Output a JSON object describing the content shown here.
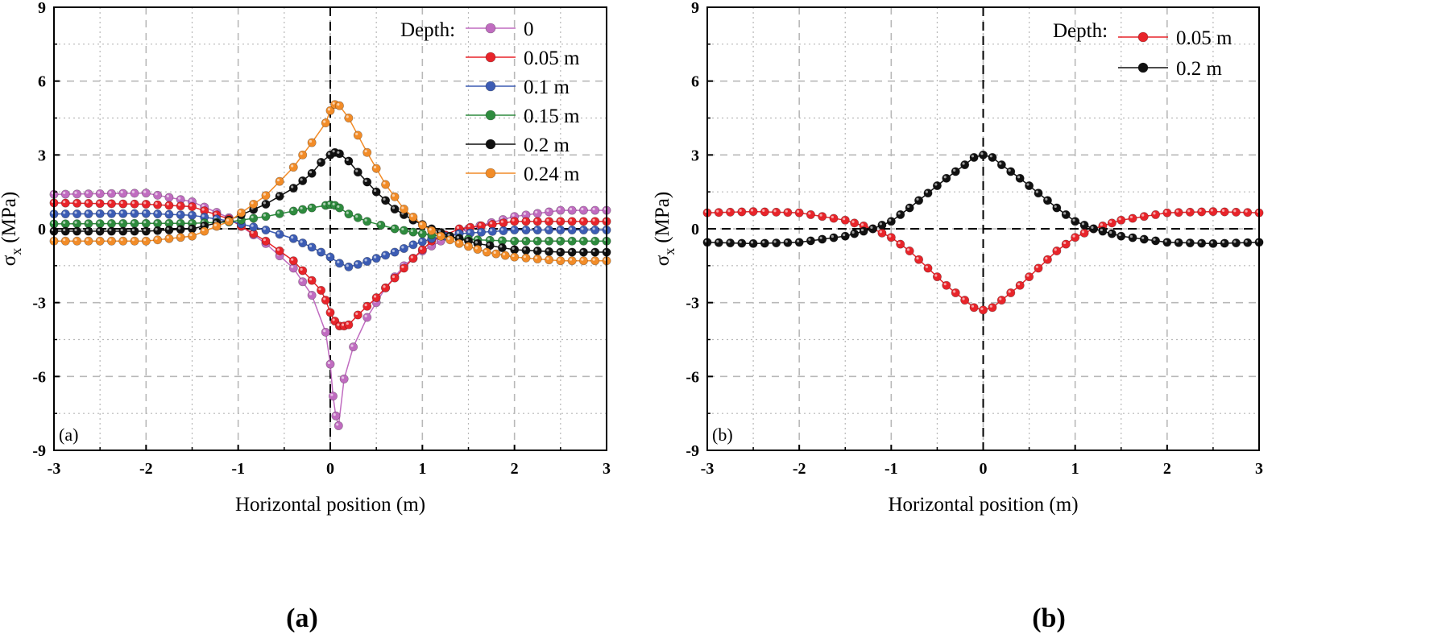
{
  "figure": {
    "captions": [
      "(a)",
      "(b)"
    ]
  },
  "chart_data": [
    {
      "type": "line",
      "panel_label": "(a)",
      "xlabel": "Horizontal position (m)",
      "ylabel_main": "σ",
      "ylabel_sub": "x",
      "ylabel_unit": "(MPa)",
      "xlim": [
        -3,
        3
      ],
      "ylim": [
        -9,
        9
      ],
      "xticks": [
        -3,
        -2,
        -1,
        0,
        1,
        2,
        3
      ],
      "yticks": [
        -9,
        -6,
        -3,
        0,
        3,
        6,
        9
      ],
      "grid": true,
      "legend_title": "Depth:",
      "legend_position": "top-right",
      "series": [
        {
          "name": "0",
          "color": "#c06cc0",
          "x": [
            -3,
            -2,
            -1.5,
            -1.1,
            -0.7,
            -0.4,
            -0.2,
            -0.05,
            0,
            0.03,
            0.06,
            0.09,
            0.15,
            0.25,
            0.4,
            0.6,
            0.8,
            1.0,
            1.2,
            1.5,
            2,
            2.5,
            3
          ],
          "y": [
            1.4,
            1.45,
            1.1,
            0.45,
            -0.6,
            -1.6,
            -2.7,
            -4.2,
            -5.5,
            -6.8,
            -7.6,
            -8.0,
            -6.1,
            -4.8,
            -3.6,
            -2.4,
            -1.5,
            -0.9,
            -0.5,
            0.0,
            0.5,
            0.75,
            0.75
          ]
        },
        {
          "name": "0.05 m",
          "color": "#e8242a",
          "x": [
            -3,
            -2,
            -1.5,
            -1.1,
            -0.7,
            -0.4,
            -0.2,
            -0.1,
            -0.05,
            0,
            0.05,
            0.1,
            0.15,
            0.2,
            0.3,
            0.5,
            0.7,
            0.9,
            1.1,
            1.4,
            2,
            2.5,
            3
          ],
          "y": [
            1.05,
            1.0,
            0.9,
            0.4,
            -0.5,
            -1.3,
            -2.1,
            -2.5,
            -2.9,
            -3.4,
            -3.75,
            -3.95,
            -3.95,
            -3.9,
            -3.5,
            -2.8,
            -2.0,
            -1.2,
            -0.5,
            0.0,
            0.3,
            0.3,
            0.3
          ]
        },
        {
          "name": "0.1 m",
          "color": "#3c5cb4",
          "x": [
            -3,
            -2,
            -1.5,
            -1.1,
            -0.7,
            -0.4,
            -0.2,
            0,
            0.1,
            0.2,
            0.3,
            0.5,
            0.7,
            0.9,
            1.1,
            1.4,
            2,
            2.5,
            3
          ],
          "y": [
            0.6,
            0.62,
            0.55,
            0.32,
            -0.05,
            -0.4,
            -0.75,
            -1.15,
            -1.4,
            -1.55,
            -1.45,
            -1.2,
            -0.95,
            -0.65,
            -0.4,
            -0.2,
            -0.05,
            -0.05,
            -0.05
          ]
        },
        {
          "name": "0.15 m",
          "color": "#2e8b3e",
          "x": [
            -3,
            -2,
            -1.5,
            -1.1,
            -0.7,
            -0.4,
            -0.2,
            -0.05,
            0,
            0.05,
            0.1,
            0.2,
            0.4,
            0.7,
            1.0,
            1.3,
            1.6,
            2,
            2.5,
            3
          ],
          "y": [
            0.2,
            0.22,
            0.22,
            0.28,
            0.5,
            0.72,
            0.85,
            0.95,
            0.98,
            0.95,
            0.85,
            0.6,
            0.3,
            0.0,
            -0.2,
            -0.35,
            -0.45,
            -0.5,
            -0.5,
            -0.5
          ]
        },
        {
          "name": "0.2 m",
          "color": "#111111",
          "x": [
            -3,
            -2,
            -1.5,
            -1.1,
            -0.7,
            -0.4,
            -0.2,
            -0.1,
            0,
            0.05,
            0.1,
            0.2,
            0.3,
            0.5,
            0.7,
            0.9,
            1.1,
            1.3,
            1.6,
            2,
            2.5,
            3
          ],
          "y": [
            -0.1,
            -0.1,
            0.0,
            0.35,
            1.0,
            1.65,
            2.25,
            2.7,
            3.0,
            3.1,
            3.05,
            2.75,
            2.3,
            1.5,
            0.8,
            0.35,
            0.0,
            -0.3,
            -0.6,
            -0.85,
            -0.95,
            -0.95
          ]
        },
        {
          "name": "0.24 m",
          "color": "#f28c28",
          "x": [
            -3,
            -2,
            -1.5,
            -1.1,
            -0.7,
            -0.4,
            -0.2,
            -0.05,
            0,
            0.05,
            0.1,
            0.2,
            0.4,
            0.6,
            0.8,
            1.0,
            1.2,
            1.4,
            1.7,
            2,
            2.5,
            3
          ],
          "y": [
            -0.5,
            -0.5,
            -0.3,
            0.3,
            1.35,
            2.5,
            3.5,
            4.3,
            4.8,
            5.05,
            5.0,
            4.5,
            3.1,
            1.8,
            0.8,
            0.15,
            -0.3,
            -0.6,
            -0.95,
            -1.15,
            -1.3,
            -1.3
          ]
        }
      ]
    },
    {
      "type": "line",
      "panel_label": "(b)",
      "xlabel": "Horizontal position (m)",
      "ylabel_main": "σ",
      "ylabel_sub": "x",
      "ylabel_unit": "(MPa)",
      "xlim": [
        -3,
        3
      ],
      "ylim": [
        -9,
        9
      ],
      "xticks": [
        -3,
        -2,
        -1,
        0,
        1,
        2,
        3
      ],
      "yticks": [
        -9,
        -6,
        -3,
        0,
        3,
        6,
        9
      ],
      "grid": true,
      "legend_title": "Depth:",
      "legend_position": "top-right",
      "series": [
        {
          "name": "0.05 m",
          "color": "#e8242a",
          "x": [
            -3,
            -2.5,
            -2,
            -1.5,
            -1.2,
            -1.0,
            -0.8,
            -0.6,
            -0.4,
            -0.2,
            -0.1,
            0,
            0.1,
            0.2,
            0.4,
            0.6,
            0.8,
            1.0,
            1.2,
            1.5,
            2,
            2.5,
            3
          ],
          "y": [
            0.65,
            0.7,
            0.65,
            0.35,
            0.0,
            -0.35,
            -0.9,
            -1.6,
            -2.3,
            -2.9,
            -3.2,
            -3.3,
            -3.2,
            -2.9,
            -2.3,
            -1.6,
            -0.9,
            -0.35,
            0.0,
            0.35,
            0.65,
            0.7,
            0.65
          ]
        },
        {
          "name": "0.2 m",
          "color": "#111111",
          "x": [
            -3,
            -2.5,
            -2,
            -1.5,
            -1.2,
            -1.0,
            -0.8,
            -0.6,
            -0.4,
            -0.2,
            -0.1,
            0,
            0.1,
            0.2,
            0.4,
            0.6,
            0.8,
            1.0,
            1.2,
            1.5,
            2,
            2.5,
            3
          ],
          "y": [
            -0.55,
            -0.6,
            -0.55,
            -0.3,
            0.0,
            0.3,
            0.85,
            1.45,
            2.05,
            2.6,
            2.9,
            3.0,
            2.9,
            2.6,
            2.05,
            1.45,
            0.85,
            0.3,
            0.0,
            -0.3,
            -0.55,
            -0.6,
            -0.55
          ]
        }
      ]
    }
  ]
}
